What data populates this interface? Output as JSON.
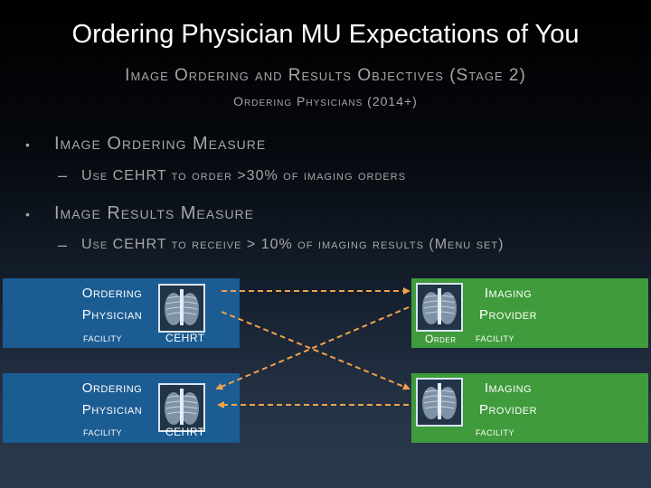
{
  "title": "Ordering Physician MU Expectations of You",
  "subtitle": {
    "line1": "Image Ordering and Results Objectives (Stage 2)",
    "line2": "Ordering Physicians (2014+)"
  },
  "bullets": [
    {
      "heading": "Image Ordering Measure",
      "sub": "Use CEHRT to order >30% of imaging orders"
    },
    {
      "heading": "Image Results Measure",
      "sub": "Use CEHRT to receive > 10% of imaging results (Menu set)"
    }
  ],
  "diagram": {
    "physician_boxes": [
      {
        "line1": "Ordering",
        "line2": "Physician",
        "line3": "facility",
        "tag": "CEHRT"
      },
      {
        "line1": "Ordering",
        "line2": "Physician",
        "line3": "facility",
        "tag": "CEHRT"
      }
    ],
    "provider_boxes": [
      {
        "line1": "Imaging",
        "line2": "Provider",
        "line3": "facility",
        "tag": "Order"
      },
      {
        "line1": "Imaging",
        "line2": "Provider",
        "line3": "facility",
        "tag": ""
      }
    ],
    "colors": {
      "physician": "#1b5c93",
      "provider": "#3f9b3b",
      "arrow": "#f0a24b"
    },
    "icons": [
      "xray-image-icon"
    ]
  }
}
